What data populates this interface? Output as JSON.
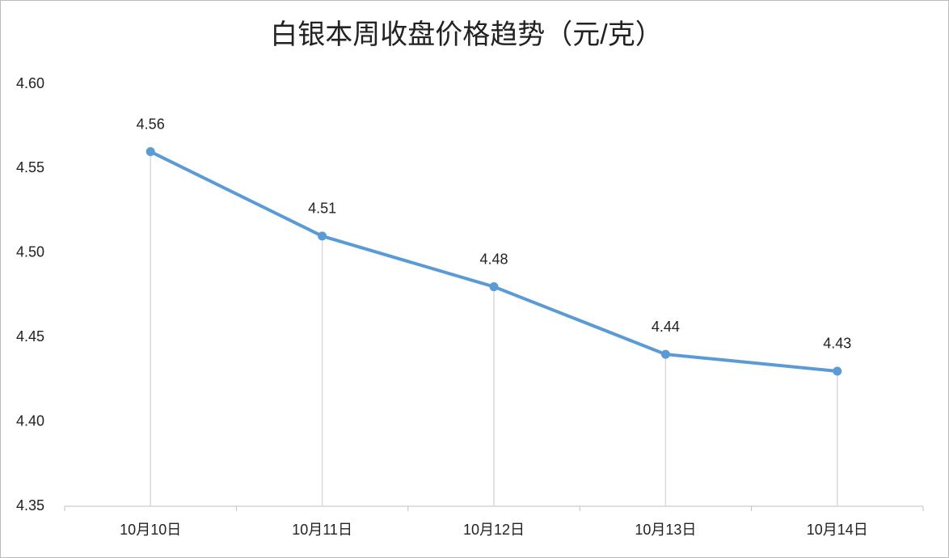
{
  "chart_data": {
    "type": "line",
    "title": "白银本周收盘价格趋势（元/克）",
    "categories": [
      "10月10日",
      "10月11日",
      "10月12日",
      "10月13日",
      "10月14日"
    ],
    "values": [
      4.56,
      4.51,
      4.48,
      4.44,
      4.43
    ],
    "color": "#5b9bd5",
    "ylim": [
      4.35,
      4.6
    ],
    "yticks": [
      4.35,
      {
        "value": 4.4,
        "label": "4.40"
      },
      4.45,
      {
        "value": 4.5,
        "label": "4.50"
      },
      4.55,
      {
        "value": 4.6,
        "label": "4.60"
      }
    ],
    "grid": false,
    "drop_lines": true
  }
}
